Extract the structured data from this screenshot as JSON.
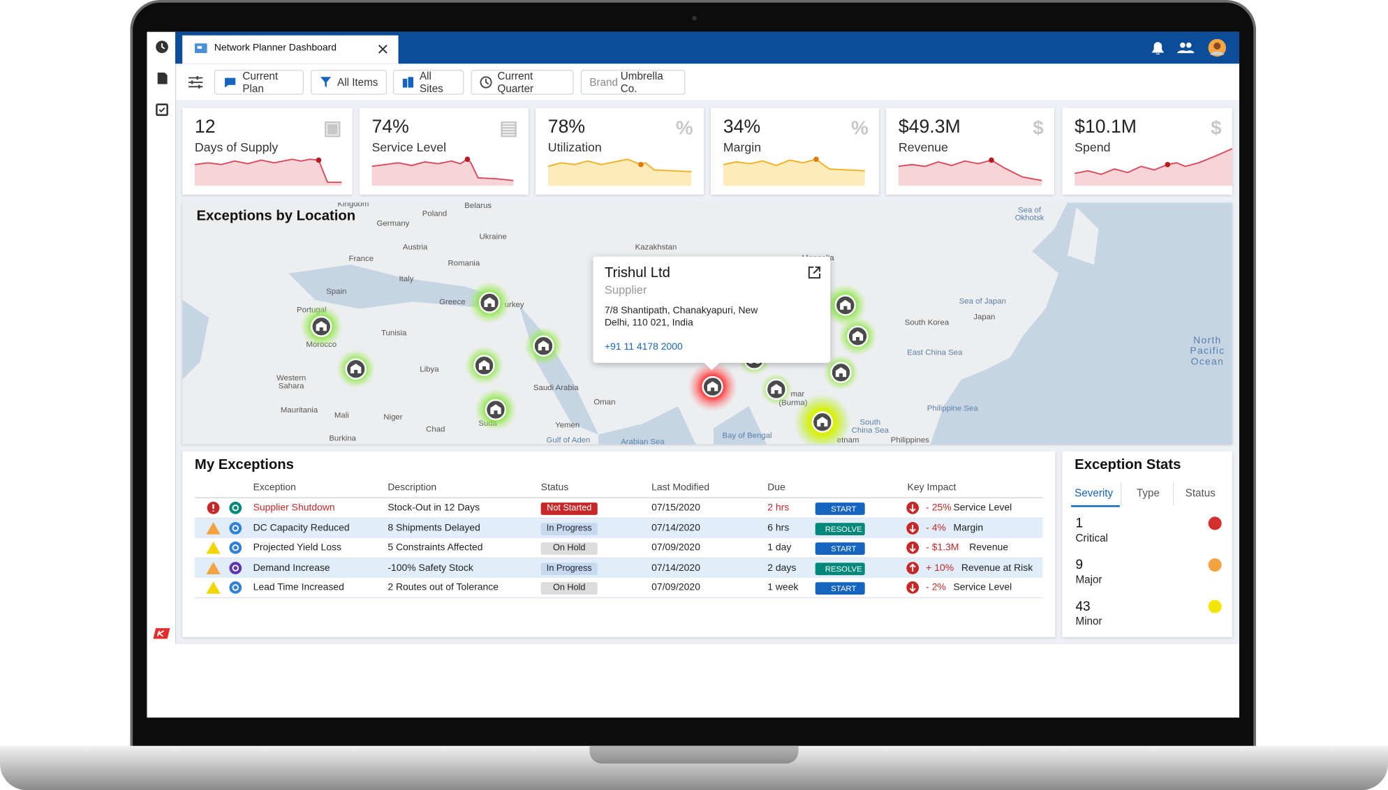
{
  "tab": {
    "title": "Network Planner Dashboard"
  },
  "filters": [
    "Current Plan",
    "All Items",
    "All Sites",
    "Current Quarter"
  ],
  "brand": {
    "label": "Brand",
    "value": "Umbrella Co."
  },
  "kpis": [
    {
      "value": "12",
      "label": "Days of Supply"
    },
    {
      "value": "74%",
      "label": "Service Level"
    },
    {
      "value": "78%",
      "label": "Utilization"
    },
    {
      "value": "34%",
      "label": "Margin"
    },
    {
      "value": "$49.3M",
      "label": "Revenue"
    },
    {
      "value": "$10.1M",
      "label": "Spend"
    }
  ],
  "map": {
    "title": "Exceptions by Location",
    "labels": [
      "Kingdom",
      "Poland",
      "Belarus",
      "Germany",
      "Ukraine",
      "Austria",
      "France",
      "Romania",
      "Kazakhstan",
      "Spain",
      "Italy",
      "Greece",
      "urkey",
      "Portugal",
      "Morocco",
      "Tunisia",
      "Libya",
      "Western",
      "Sahara",
      "Mauritania",
      "Mali",
      "Niger",
      "Chad",
      "Burkina",
      "Suda",
      "Saudi Arabia",
      "Yemen",
      "Oman",
      "Gulf of Aden",
      "Arabian Sea",
      "Bay of Bengal",
      "mar",
      "(Burma)",
      "South Korea",
      "Japan",
      "Sea of Japan",
      "East China Sea",
      "Philippine Sea",
      "South",
      "China Sea",
      "Philippines",
      "etnam",
      "North",
      "Pacific",
      "Ocean",
      "Sea of",
      "Okhotsk",
      "Mongolia"
    ],
    "popup": {
      "name": "Trishul Ltd",
      "type": "Supplier",
      "address_line1": "7/8 Shantipath, Chanakyapuri, New",
      "address_line2": "Delhi, 110 021, India",
      "phone": "+91 11 4178 2000"
    }
  },
  "exceptions": {
    "title": "My Exceptions",
    "columns": [
      "Exception",
      "Description",
      "Status",
      "Last Modified",
      "Due",
      "Key Impact"
    ],
    "rows": [
      {
        "exception": "Supplier Shutdown",
        "description": "Stock-Out in 12 Days",
        "status": "Not Started",
        "last_modified": "07/15/2020",
        "due": "2 hrs",
        "action": "START",
        "impact": "- 25%",
        "metric": "Service Level"
      },
      {
        "exception": "DC Capacity Reduced",
        "description": "8 Shipments Delayed",
        "status": "In Progress",
        "last_modified": "07/14/2020",
        "due": "6 hrs",
        "action": "RESOLVE",
        "impact": "- 4%",
        "metric": "Margin"
      },
      {
        "exception": "Projected Yield Loss",
        "description": "5 Constraints Affected",
        "status": "On Hold",
        "last_modified": "07/09/2020",
        "due": "1 day",
        "action": "START",
        "impact": "- $1.3M",
        "metric": "Revenue"
      },
      {
        "exception": "Demand Increase",
        "description": "-100% Safety Stock",
        "status": "In Progress",
        "last_modified": "07/14/2020",
        "due": "2 days",
        "action": "RESOLVE",
        "impact": "+ 10%",
        "metric": "Revenue at Risk"
      },
      {
        "exception": "Lead Time Increased",
        "description": "2 Routes out of Tolerance",
        "status": "On Hold",
        "last_modified": "07/09/2020",
        "due": "1 week",
        "action": "START",
        "impact": "- 2%",
        "metric": "Service Level"
      }
    ]
  },
  "stats": {
    "title": "Exception Stats",
    "tabs": [
      "Severity",
      "Type",
      "Status"
    ],
    "items": [
      {
        "count": 1,
        "label": "Critical"
      },
      {
        "count": 9,
        "label": "Major"
      },
      {
        "count": 43,
        "label": "Minor"
      }
    ]
  }
}
